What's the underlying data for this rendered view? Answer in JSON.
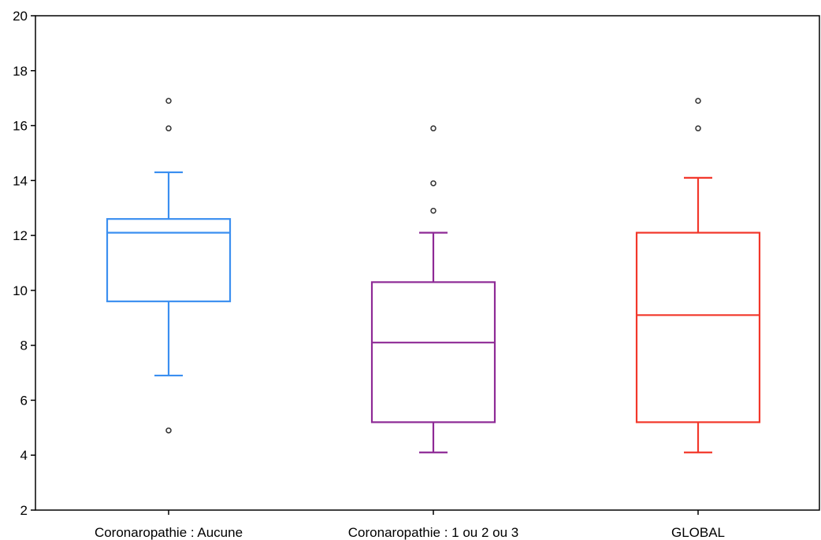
{
  "chart_data": {
    "type": "box",
    "title": "",
    "xlabel": "",
    "ylabel": "",
    "ylim": [
      2,
      20
    ],
    "yticks": [
      2,
      4,
      6,
      8,
      10,
      12,
      14,
      16,
      18,
      20
    ],
    "grid": false,
    "categories": [
      "Coronaropathie : Aucune",
      "Coronaropathie : 1 ou 2 ou 3",
      "GLOBAL"
    ],
    "boxes": [
      {
        "category": "Coronaropathie : Aucune",
        "color": "#3b8ff0",
        "whisker_low": 6.9,
        "q1": 9.6,
        "median": 12.1,
        "q3": 12.6,
        "whisker_high": 14.3,
        "outliers": [
          4.9,
          15.9,
          16.9
        ]
      },
      {
        "category": "Coronaropathie : 1 ou 2 ou 3",
        "color": "#8e2a96",
        "whisker_low": 4.1,
        "q1": 5.2,
        "median": 8.1,
        "q3": 10.3,
        "whisker_high": 12.1,
        "outliers": [
          12.9,
          13.9,
          15.9
        ]
      },
      {
        "category": "GLOBAL",
        "color": "#f2372a",
        "whisker_low": 4.1,
        "q1": 5.2,
        "median": 9.1,
        "q3": 12.1,
        "whisker_high": 14.1,
        "outliers": [
          15.9,
          16.9
        ]
      }
    ]
  }
}
